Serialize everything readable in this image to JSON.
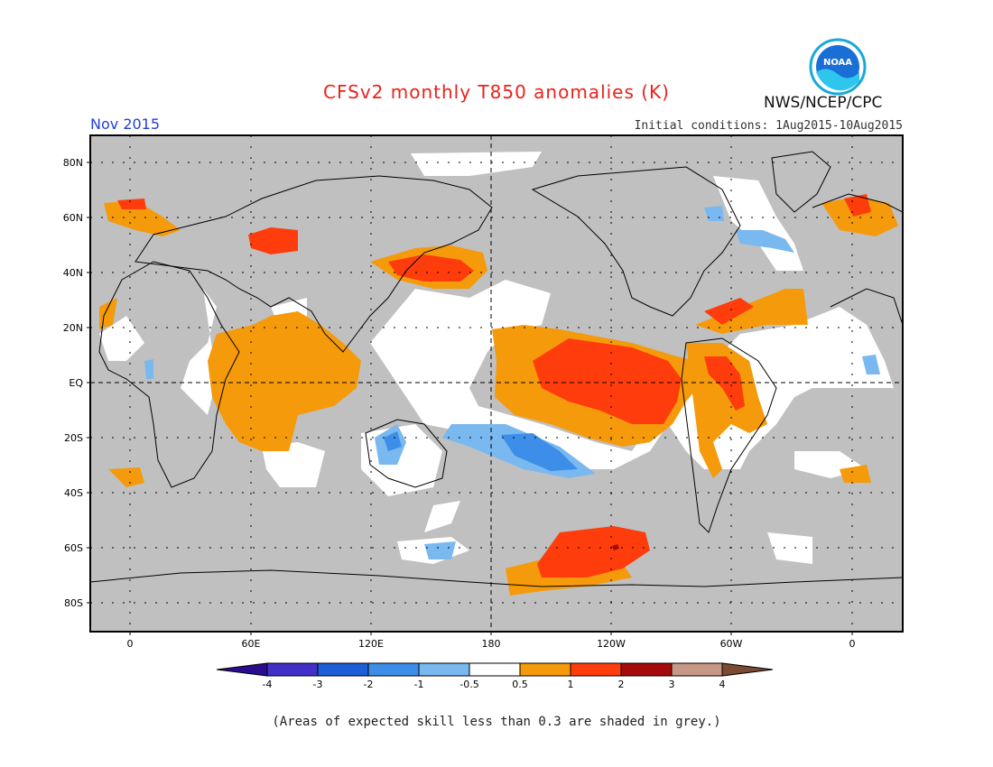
{
  "header": {
    "title": "CFSv2 monthly T850 anomalies (K)",
    "month": "Nov 2015",
    "initial_conditions": "Initial conditions: 1Aug2015-10Aug2015",
    "agency": "NWS/NCEP/CPC",
    "logo_text": "NOAA"
  },
  "map": {
    "lat_labels": [
      "80N",
      "60N",
      "40N",
      "20N",
      "EQ",
      "20S",
      "40S",
      "60S",
      "80S"
    ],
    "lon_labels": [
      "0",
      "60E",
      "120E",
      "180",
      "120W",
      "60W",
      "0"
    ],
    "background_color": "#c0c0c0"
  },
  "legend": {
    "boundaries": [
      "-4",
      "-3",
      "-2",
      "-1",
      "-0.5",
      "0.5",
      "1",
      "2",
      "3",
      "4"
    ],
    "colors": [
      "#2a0d8f",
      "#4030c8",
      "#1d5fd6",
      "#3c8ee8",
      "#7ab8f0",
      "#ffffff",
      "#f59a0a",
      "#ff3d0c",
      "#a50b0b",
      "#c79886",
      "#7a4a35"
    ]
  },
  "footer": {
    "note": "(Areas of expected skill less than 0.3 are shaded in grey.)"
  }
}
